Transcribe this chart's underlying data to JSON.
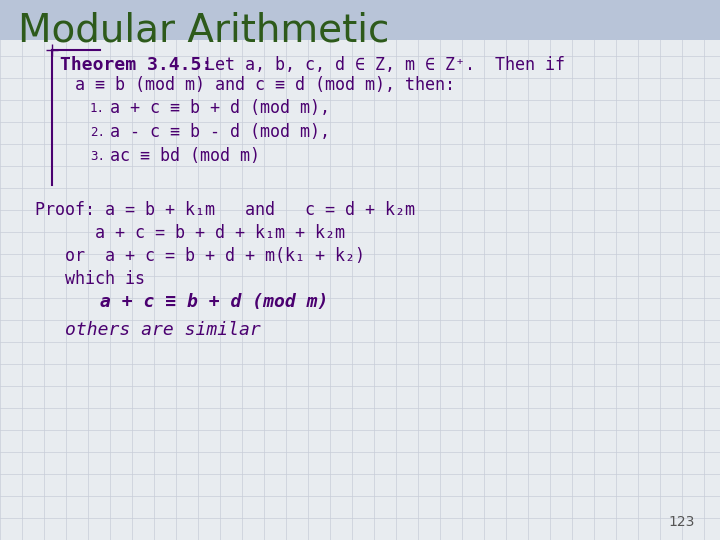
{
  "title": "Modular Arithmetic",
  "title_color": "#2d5a1b",
  "title_fontsize": 28,
  "background_color": "#e8ecf0",
  "grid_color": "#c8cdd8",
  "theorem_color": "#4a0070",
  "proof_color": "#4a0070",
  "page_number": "123",
  "theorem_bold": "Theorem 3.4.5:",
  "theorem_rest": "  Let a, b, c, d ∈ Z, m ∈ Z⁺.  Then if",
  "theorem_line2": "a ≡ b (mod m) and c ≡ d (mod m), then:",
  "item1": "a + c ≡ b + d (mod m),",
  "item2": "a - c ≡ b - d (mod m),",
  "item3": "ac ≡ bd (mod m)",
  "proof_line1": "Proof: a = b + k₁m   and   c = d + k₂m",
  "proof_line2": "a + c = b + d + k₁m + k₂m",
  "proof_line3": "or  a + c = b + d + m(k₁ + k₂)",
  "proof_line4": "which is",
  "proof_line5": "a + c ≡ b + d (mod m)",
  "proof_line6": "others are similar"
}
